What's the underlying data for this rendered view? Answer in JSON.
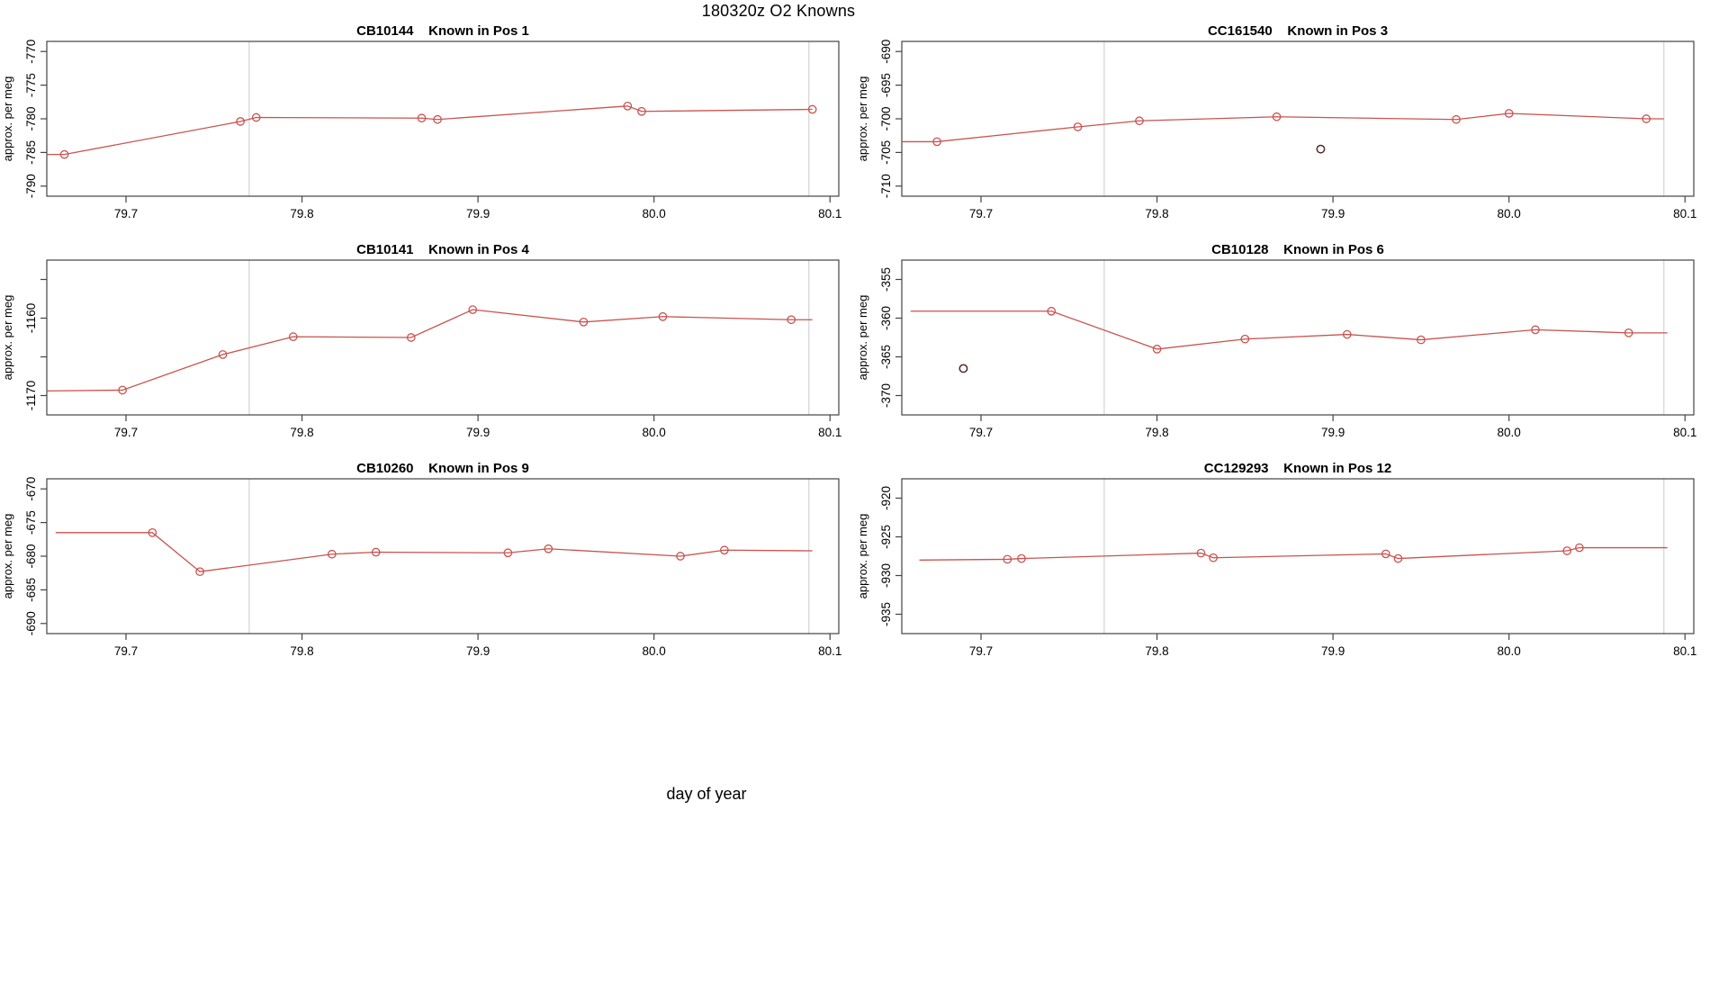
{
  "title": "180320z   O2 Knowns",
  "xlabel": "day of year",
  "colors": {
    "line": "#c9534f",
    "marker": "#c9534f",
    "outlier": "#502828",
    "grid": "#d2d2d2",
    "axis": "#444444",
    "text": "#000000"
  },
  "chart_data": [
    {
      "type": "line",
      "station_id": "CB10144",
      "pos_label": "Known in Pos 1",
      "ylabel": "approx. per meg",
      "xlim": [
        79.655,
        80.105
      ],
      "ylim": [
        -791.5,
        -768.5
      ],
      "xticks": [
        79.7,
        79.8,
        79.9,
        80.0,
        80.1
      ],
      "xtick_labels": [
        "79.7",
        "79.8",
        "79.9",
        "80.0",
        "80.1"
      ],
      "yticks": [
        -790,
        -785,
        -780,
        -775,
        -770
      ],
      "ytick_labels": [
        "-790",
        "-785",
        "-780",
        "-775",
        "-770"
      ],
      "vlines": [
        79.77,
        80.088
      ],
      "line": [
        [
          79.655,
          -785.3
        ],
        [
          79.665,
          -785.3
        ],
        [
          79.765,
          -780.4
        ],
        [
          79.774,
          -779.8
        ],
        [
          79.868,
          -779.9
        ],
        [
          79.877,
          -780.1
        ],
        [
          79.985,
          -778.1
        ],
        [
          79.993,
          -778.9
        ],
        [
          80.09,
          -778.6
        ]
      ],
      "markers": [
        [
          79.665,
          -785.3
        ],
        [
          79.765,
          -780.4
        ],
        [
          79.774,
          -779.8
        ],
        [
          79.868,
          -779.9
        ],
        [
          79.877,
          -780.1
        ],
        [
          79.985,
          -778.1
        ],
        [
          79.993,
          -778.9
        ],
        [
          80.09,
          -778.6
        ]
      ],
      "outliers": []
    },
    {
      "type": "line",
      "station_id": "CC161540",
      "pos_label": "Known in Pos 3",
      "ylabel": "approx. per meg",
      "xlim": [
        79.655,
        80.105
      ],
      "ylim": [
        -711.5,
        -688.5
      ],
      "xticks": [
        79.7,
        79.8,
        79.9,
        80.0,
        80.1
      ],
      "xtick_labels": [
        "79.7",
        "79.8",
        "79.9",
        "80.0",
        "80.1"
      ],
      "yticks": [
        -710,
        -705,
        -700,
        -695,
        -690
      ],
      "ytick_labels": [
        "-710",
        "-705",
        "-700",
        "-695",
        "-690"
      ],
      "vlines": [
        79.77,
        80.088
      ],
      "line": [
        [
          79.655,
          -703.4
        ],
        [
          79.675,
          -703.4
        ],
        [
          79.755,
          -701.2
        ],
        [
          79.79,
          -700.3
        ],
        [
          79.868,
          -699.7
        ],
        [
          79.97,
          -700.1
        ],
        [
          80.0,
          -699.2
        ],
        [
          80.078,
          -700.0
        ],
        [
          80.088,
          -700.0
        ]
      ],
      "markers": [
        [
          79.675,
          -703.4
        ],
        [
          79.755,
          -701.2
        ],
        [
          79.79,
          -700.3
        ],
        [
          79.868,
          -699.7
        ],
        [
          79.97,
          -700.1
        ],
        [
          80.0,
          -699.2
        ],
        [
          80.078,
          -700.0
        ]
      ],
      "outliers": [
        [
          79.893,
          -704.5
        ]
      ]
    },
    {
      "type": "line",
      "station_id": "CB10141",
      "pos_label": "Known in Pos 4",
      "ylabel": "approx. per meg",
      "xlim": [
        79.655,
        80.105
      ],
      "ylim": [
        -1172.5,
        -1152.5
      ],
      "xticks": [
        79.7,
        79.8,
        79.9,
        80.0,
        80.1
      ],
      "xtick_labels": [
        "79.7",
        "79.8",
        "79.9",
        "80.0",
        "80.1"
      ],
      "yticks": [
        -1170,
        -1165,
        -1160,
        -1155
      ],
      "ytick_labels": [
        "-1170",
        "",
        "-1160",
        ""
      ],
      "vlines": [
        79.77,
        80.088
      ],
      "line": [
        [
          79.655,
          -1169.4
        ],
        [
          79.698,
          -1169.3
        ],
        [
          79.755,
          -1164.7
        ],
        [
          79.795,
          -1162.4
        ],
        [
          79.862,
          -1162.5
        ],
        [
          79.897,
          -1158.9
        ],
        [
          79.96,
          -1160.5
        ],
        [
          80.005,
          -1159.8
        ],
        [
          80.078,
          -1160.2
        ],
        [
          80.09,
          -1160.2
        ]
      ],
      "markers": [
        [
          79.698,
          -1169.3
        ],
        [
          79.755,
          -1164.7
        ],
        [
          79.795,
          -1162.4
        ],
        [
          79.862,
          -1162.5
        ],
        [
          79.897,
          -1158.9
        ],
        [
          79.96,
          -1160.5
        ],
        [
          80.005,
          -1159.8
        ],
        [
          80.078,
          -1160.2
        ]
      ],
      "outliers": []
    },
    {
      "type": "line",
      "station_id": "CB10128",
      "pos_label": "Known in Pos 6",
      "ylabel": "approx. per meg",
      "xlim": [
        79.655,
        80.105
      ],
      "ylim": [
        -372.5,
        -352.5
      ],
      "xticks": [
        79.7,
        79.8,
        79.9,
        80.0,
        80.1
      ],
      "xtick_labels": [
        "79.7",
        "79.8",
        "79.9",
        "80.0",
        "80.1"
      ],
      "yticks": [
        -370,
        -365,
        -360,
        -355
      ],
      "ytick_labels": [
        "-370",
        "-365",
        "-360",
        "-355"
      ],
      "vlines": [
        79.77,
        80.088
      ],
      "line": [
        [
          79.66,
          -359.1
        ],
        [
          79.74,
          -359.1
        ],
        [
          79.8,
          -364.0
        ],
        [
          79.85,
          -362.7
        ],
        [
          79.908,
          -362.1
        ],
        [
          79.95,
          -362.8
        ],
        [
          80.015,
          -361.5
        ],
        [
          80.068,
          -361.9
        ],
        [
          80.09,
          -361.9
        ]
      ],
      "markers": [
        [
          79.74,
          -359.1
        ],
        [
          79.8,
          -364.0
        ],
        [
          79.85,
          -362.7
        ],
        [
          79.908,
          -362.1
        ],
        [
          79.95,
          -362.8
        ],
        [
          80.015,
          -361.5
        ],
        [
          80.068,
          -361.9
        ]
      ],
      "outliers": [
        [
          79.69,
          -366.5
        ]
      ]
    },
    {
      "type": "line",
      "station_id": "CB10260",
      "pos_label": "Known in Pos 9",
      "ylabel": "approx. per meg",
      "xlim": [
        79.655,
        80.105
      ],
      "ylim": [
        -691.5,
        -668.5
      ],
      "xticks": [
        79.7,
        79.8,
        79.9,
        80.0,
        80.1
      ],
      "xtick_labels": [
        "79.7",
        "79.8",
        "79.9",
        "80.0",
        "80.1"
      ],
      "yticks": [
        -690,
        -685,
        -680,
        -675,
        -670
      ],
      "ytick_labels": [
        "-690",
        "-685",
        "-680",
        "-675",
        "-670"
      ],
      "vlines": [
        79.77,
        80.088
      ],
      "line": [
        [
          79.66,
          -676.5
        ],
        [
          79.715,
          -676.5
        ],
        [
          79.742,
          -682.3
        ],
        [
          79.817,
          -679.7
        ],
        [
          79.842,
          -679.4
        ],
        [
          79.917,
          -679.5
        ],
        [
          79.94,
          -678.9
        ],
        [
          80.015,
          -680.0
        ],
        [
          80.04,
          -679.1
        ],
        [
          80.09,
          -679.2
        ]
      ],
      "markers": [
        [
          79.715,
          -676.5
        ],
        [
          79.742,
          -682.3
        ],
        [
          79.817,
          -679.7
        ],
        [
          79.842,
          -679.4
        ],
        [
          79.917,
          -679.5
        ],
        [
          79.94,
          -678.9
        ],
        [
          80.015,
          -680.0
        ],
        [
          80.04,
          -679.1
        ]
      ],
      "outliers": []
    },
    {
      "type": "line",
      "station_id": "CC129293",
      "pos_label": "Known in Pos 12",
      "ylabel": "approx. per meg",
      "xlim": [
        79.655,
        80.105
      ],
      "ylim": [
        -937.5,
        -917.5
      ],
      "xticks": [
        79.7,
        79.8,
        79.9,
        80.0,
        80.1
      ],
      "xtick_labels": [
        "79.7",
        "79.8",
        "79.9",
        "80.0",
        "80.1"
      ],
      "yticks": [
        -935,
        -930,
        -925,
        -920
      ],
      "ytick_labels": [
        "-935",
        "-930",
        "-925",
        "-920"
      ],
      "vlines": [
        79.77,
        80.088
      ],
      "line": [
        [
          79.665,
          -928.0
        ],
        [
          79.715,
          -927.9
        ],
        [
          79.723,
          -927.8
        ],
        [
          79.825,
          -927.1
        ],
        [
          79.832,
          -927.7
        ],
        [
          79.93,
          -927.2
        ],
        [
          79.937,
          -927.8
        ],
        [
          80.033,
          -926.8
        ],
        [
          80.04,
          -926.4
        ],
        [
          80.09,
          -926.4
        ]
      ],
      "markers": [
        [
          79.715,
          -927.9
        ],
        [
          79.723,
          -927.8
        ],
        [
          79.825,
          -927.1
        ],
        [
          79.832,
          -927.7
        ],
        [
          79.93,
          -927.2
        ],
        [
          79.937,
          -927.8
        ],
        [
          80.033,
          -926.8
        ],
        [
          80.04,
          -926.4
        ]
      ],
      "outliers": []
    }
  ]
}
